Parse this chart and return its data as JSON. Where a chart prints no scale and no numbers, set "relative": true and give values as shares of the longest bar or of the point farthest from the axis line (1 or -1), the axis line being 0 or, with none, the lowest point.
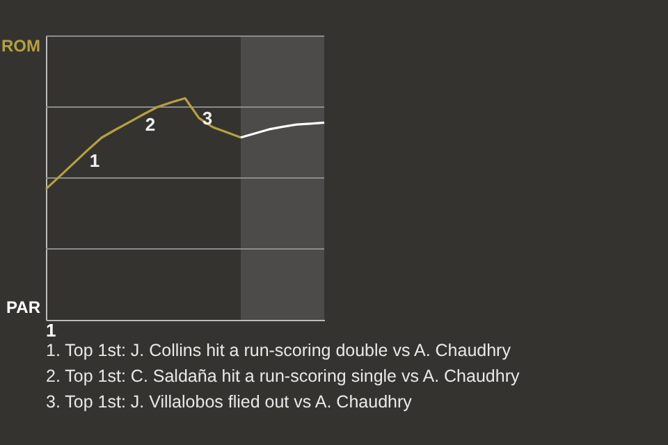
{
  "chart_data": {
    "type": "line",
    "relative": true,
    "categories": [
      null,
      null,
      null,
      null,
      null,
      null,
      null,
      null,
      null,
      null,
      null,
      null,
      null,
      null,
      null,
      null,
      null,
      null,
      null,
      null,
      null
    ],
    "series": [
      {
        "color": "#b5a040",
        "values": [
          0.59,
          0.648,
          0.707,
          0.766,
          0.822,
          0.858,
          0.892,
          0.927,
          0.96,
          0.981,
          1.0,
          0.91,
          0.869,
          0.846,
          0.823,
          null,
          null,
          null,
          null,
          null,
          null
        ]
      },
      {
        "color": "#ffffff",
        "values": [
          null,
          null,
          null,
          null,
          null,
          null,
          null,
          null,
          null,
          null,
          null,
          null,
          null,
          null,
          0.823,
          0.841,
          0.859,
          0.871,
          0.881,
          0.885,
          0.89
        ]
      }
    ],
    "grid": "y",
    "marker": "none",
    "line_style": "solid",
    "annotations": [
      {
        "text": "1",
        "y": 0.822
      },
      {
        "text": "2",
        "y": 0.96
      },
      {
        "text": "3",
        "y": 0.869
      },
      "ROM",
      "PAR",
      "1",
      "1. Top 1st: J. Collins hit a run-scoring double vs A. Chaudhry",
      "2. Top 1st: C. Saldaña hit a run-scoring single vs A. Chaudhry",
      "3. Top 1st: J. Villalobos flied out vs A. Chaudhry"
    ]
  }
}
